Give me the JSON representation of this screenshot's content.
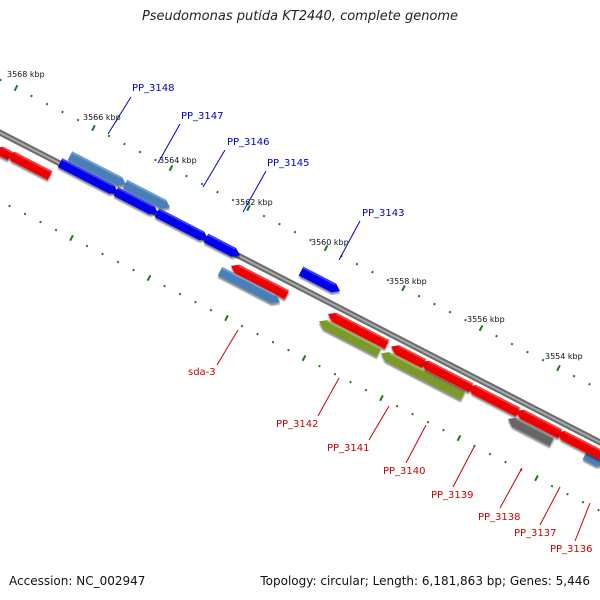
{
  "title": "Pseudomonas putida KT2440, complete genome",
  "footer": {
    "accession": "Accession: NC_002947",
    "topology": "Topology: circular; Length: 6,181,863 bp; Genes: 5,446"
  },
  "colors": {
    "backbone": "#808080",
    "forward_gene": "#0000ee",
    "forward_gene_alt": "#4a7fb8",
    "reverse_gene": "#ee0000",
    "reverse_gene_alt": "#7a9a2a",
    "other": "#666666",
    "tick": "#1a7a1a",
    "forward_label": "#0000cc",
    "reverse_label": "#cc0000"
  },
  "scale_labels": [
    "3568 kbp",
    "3566 kbp",
    "3564 kbp",
    "3562 kbp",
    "3560 kbp",
    "3558 kbp",
    "3556 kbp",
    "3554 kbp"
  ],
  "forward_labels": [
    "PP_3148",
    "PP_3147",
    "PP_3146",
    "PP_3145",
    "PP_3143"
  ],
  "reverse_labels": [
    "sda-3",
    "PP_3142",
    "PP_3141",
    "PP_3140",
    "PP_3139",
    "PP_3138",
    "PP_3137",
    "PP_3136"
  ]
}
